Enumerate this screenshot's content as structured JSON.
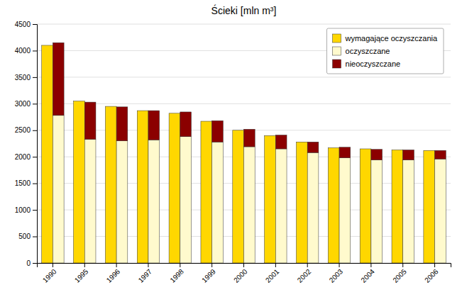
{
  "chart_data": {
    "type": "bar",
    "title": "Ścieki [mln m³]",
    "categories": [
      "1990",
      "1995",
      "1996",
      "1997",
      "1998",
      "1999",
      "2000",
      "2001",
      "2002",
      "2003",
      "2004",
      "2005",
      "2006"
    ],
    "series": [
      {
        "name": "wymagające oczyszczania",
        "type": "bar",
        "color": "#FFD700",
        "values": [
          4100,
          3050,
          2950,
          2870,
          2820,
          2670,
          2500,
          2400,
          2280,
          2170,
          2150,
          2130,
          2120
        ]
      },
      {
        "name": "oczyszczane",
        "type": "stacked_bar",
        "color": "#FFFACD",
        "values": [
          2780,
          2330,
          2300,
          2320,
          2380,
          2280,
          2190,
          2150,
          2080,
          1980,
          1940,
          1940,
          1960
        ]
      },
      {
        "name": "nieoczyszczane",
        "type": "stacked_bar",
        "color": "#8B0000",
        "values": [
          1370,
          700,
          640,
          550,
          465,
          400,
          330,
          260,
          200,
          200,
          200,
          190,
          160
        ]
      }
    ],
    "ylim": [
      0,
      4500
    ],
    "yticks": [
      0,
      500,
      1000,
      1500,
      2000,
      2500,
      3000,
      3500,
      4000,
      4500
    ],
    "grid": true,
    "legend": "upper right"
  }
}
